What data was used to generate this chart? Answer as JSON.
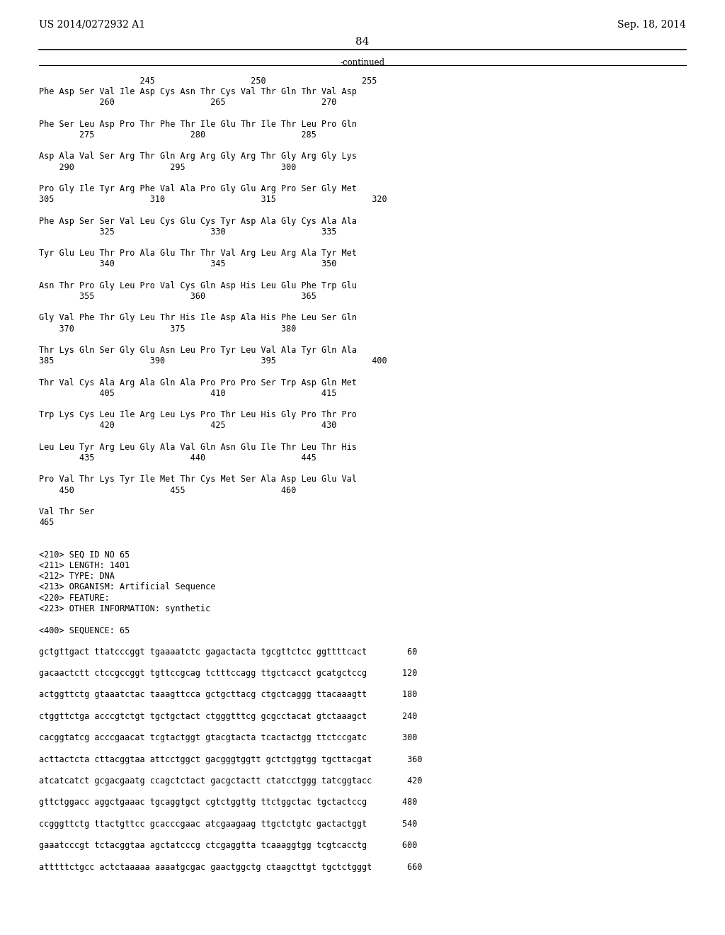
{
  "header_left": "US 2014/0272932 A1",
  "header_right": "Sep. 18, 2014",
  "page_number": "84",
  "continued_label": "-continued",
  "background_color": "#ffffff",
  "text_color": "#000000",
  "font_size": 8.5,
  "mono_font": "DejaVu Sans Mono",
  "serif_font": "DejaVu Serif",
  "header_font_size": 10.0,
  "page_num_font_size": 11.0,
  "content_lines": [
    "                    245                   250                   255     ",
    "Phe Asp Ser Val Ile Asp Cys Asn Thr Cys Val Thr Gln Thr Val Asp",
    "            260                   265                   270",
    "",
    "Phe Ser Leu Asp Pro Thr Phe Thr Ile Glu Thr Ile Thr Leu Pro Gln",
    "        275                   280                   285",
    "",
    "Asp Ala Val Ser Arg Thr Gln Arg Arg Gly Arg Thr Gly Arg Gly Lys",
    "    290                   295                   300",
    "",
    "Pro Gly Ile Tyr Arg Phe Val Ala Pro Gly Glu Arg Pro Ser Gly Met",
    "305                   310                   315                   320",
    "",
    "Phe Asp Ser Ser Val Leu Cys Glu Cys Tyr Asp Ala Gly Cys Ala Ala",
    "            325                   330                   335",
    "",
    "Tyr Glu Leu Thr Pro Ala Glu Thr Thr Val Arg Leu Arg Ala Tyr Met",
    "            340                   345                   350",
    "",
    "Asn Thr Pro Gly Leu Pro Val Cys Gln Asp His Leu Glu Phe Trp Glu",
    "        355                   360                   365",
    "",
    "Gly Val Phe Thr Gly Leu Thr His Ile Asp Ala His Phe Leu Ser Gln",
    "    370                   375                   380",
    "",
    "Thr Lys Gln Ser Gly Glu Asn Leu Pro Tyr Leu Val Ala Tyr Gln Ala",
    "385                   390                   395                   400",
    "",
    "Thr Val Cys Ala Arg Ala Gln Ala Pro Pro Pro Ser Trp Asp Gln Met",
    "            405                   410                   415",
    "",
    "Trp Lys Cys Leu Ile Arg Leu Lys Pro Thr Leu His Gly Pro Thr Pro",
    "            420                   425                   430",
    "",
    "Leu Leu Tyr Arg Leu Gly Ala Val Gln Asn Glu Ile Thr Leu Thr His",
    "        435                   440                   445",
    "",
    "Pro Val Thr Lys Tyr Ile Met Thr Cys Met Ser Ala Asp Leu Glu Val",
    "    450                   455                   460",
    "",
    "Val Thr Ser",
    "465",
    "",
    "",
    "<210> SEQ ID NO 65",
    "<211> LENGTH: 1401",
    "<212> TYPE: DNA",
    "<213> ORGANISM: Artificial Sequence",
    "<220> FEATURE:",
    "<223> OTHER INFORMATION: synthetic",
    "",
    "<400> SEQUENCE: 65",
    "",
    "gctgttgact ttatcccggt tgaaaatctc gagactacta tgcgttctcc ggttttcact        60",
    "",
    "gacaactctt ctccgccggt tgttccgcag tctttccagg ttgctcacct gcatgctccg       120",
    "",
    "actggttctg gtaaatctac taaagttcca gctgcttacg ctgctcaggg ttacaaagtt       180",
    "",
    "ctggttctga acccgtctgt tgctgctact ctgggtttcg gcgcctacat gtctaaagct       240",
    "",
    "cacggtatcg acccgaacat tcgtactggt gtacgtacta tcactactgg ttctccgatc       300",
    "",
    "acttactcta cttacggtaa attcctggct gacgggtggtt gctctggtgg tgcttacgat       360",
    "",
    "atcatcatct gcgacgaatg ccagctctact gacgctactt ctatcctggg tatcggtacc       420",
    "",
    "gttctggacc aggctgaaac tgcaggtgct cgtctggttg ttctggctac tgctactccg       480",
    "",
    "ccgggttctg ttactgttcc gcacccgaac atcgaagaag ttgctctgtc gactactggt       540",
    "",
    "gaaatcccgt tctacggtaa agctatcccg ctcgaggtta tcaaaggtgg tcgtcacctg       600",
    "",
    "atttttctgcc actctaaaaa aaaatgcgac gaactggctg ctaagcttgt tgctctgggt       660"
  ]
}
